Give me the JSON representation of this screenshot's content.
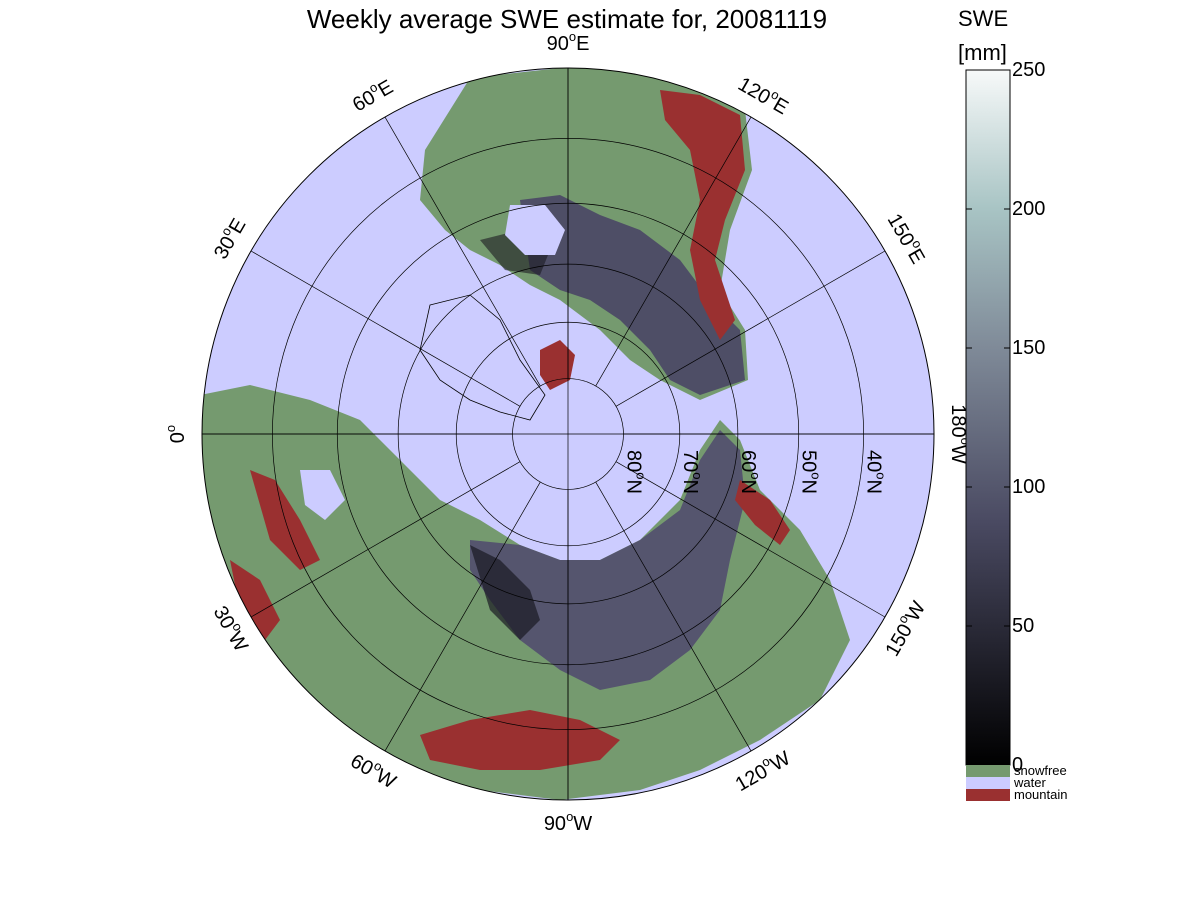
{
  "title": "Weekly average SWE estimate for, 20081119",
  "map": {
    "projection": "north-polar-stereographic",
    "longitude_labels": [
      {
        "text": "90°W",
        "base": "90",
        "unit": "W",
        "lon": -90
      },
      {
        "text": "120°W",
        "base": "120",
        "unit": "W",
        "lon": -120
      },
      {
        "text": "150°W",
        "base": "150",
        "unit": "W",
        "lon": -150
      },
      {
        "text": "180°W",
        "base": "180",
        "unit": "W",
        "lon": 180
      },
      {
        "text": "150°E",
        "base": "150",
        "unit": "E",
        "lon": 150
      },
      {
        "text": "120°E",
        "base": "120",
        "unit": "E",
        "lon": 120
      },
      {
        "text": "90°E",
        "base": "90",
        "unit": "E",
        "lon": 90
      },
      {
        "text": "60°E",
        "base": "60",
        "unit": "E",
        "lon": 60
      },
      {
        "text": "30°E",
        "base": "30",
        "unit": "E",
        "lon": 30
      },
      {
        "text": "0°",
        "base": "0",
        "unit": "",
        "lon": 0
      },
      {
        "text": "30°W",
        "base": "30",
        "unit": "W",
        "lon": -30
      },
      {
        "text": "60°W",
        "base": "60",
        "unit": "W",
        "lon": -60
      }
    ],
    "latitude_labels": [
      {
        "text": "80°N",
        "base": "80",
        "unit": "N",
        "lat": 80
      },
      {
        "text": "70°N",
        "base": "70",
        "unit": "N",
        "lat": 70
      },
      {
        "text": "60°N",
        "base": "60",
        "unit": "N",
        "lat": 60
      },
      {
        "text": "50°N",
        "base": "50",
        "unit": "N",
        "lat": 50
      },
      {
        "text": "40°N",
        "base": "40",
        "unit": "N",
        "lat": 40
      }
    ],
    "lat_circles": [
      80,
      70,
      60,
      50,
      40
    ],
    "lat_min": 30
  },
  "colorbar": {
    "header_line1": "SWE",
    "header_line2": "[mm]",
    "min": 0,
    "max": 250,
    "ticks": [
      0,
      50,
      100,
      150,
      200,
      250
    ],
    "colors": {
      "low": "#000000",
      "mid": "#5a5a78",
      "high": "#f5f8f8"
    }
  },
  "legend": [
    {
      "label": "snowfree",
      "color": "#759a6f"
    },
    {
      "label": "water",
      "color": "#ccccff"
    },
    {
      "label": "mountain",
      "color": "#9a3030"
    }
  ],
  "colors": {
    "water": "#ccccff",
    "snowfree": "#759a6f",
    "mountain": "#9a3030",
    "snow_deep": "#1a1a22",
    "snow_mid": "#55556e",
    "snow_light": "#6e6e88"
  }
}
